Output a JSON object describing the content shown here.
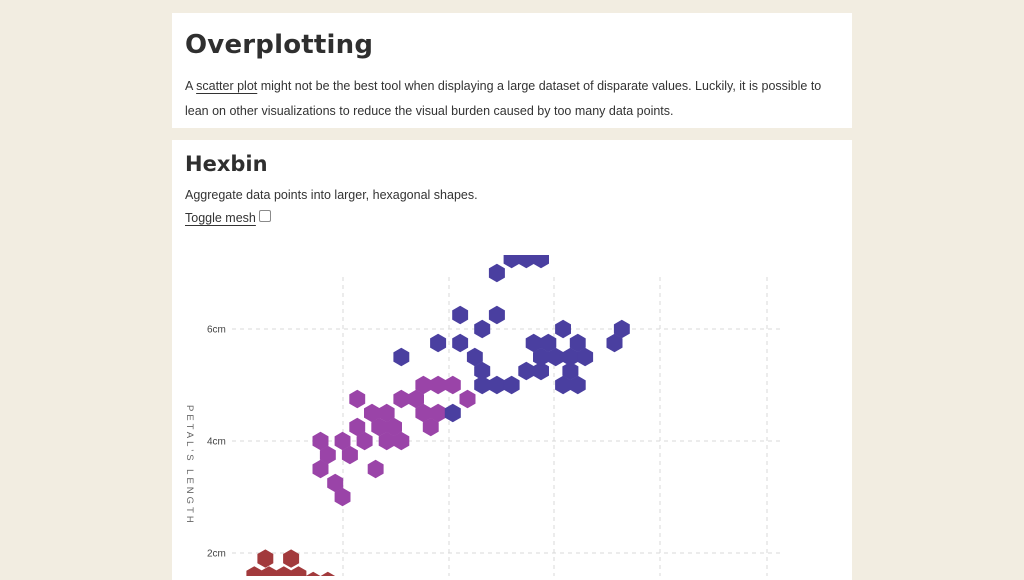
{
  "overplotting": {
    "title": "Overplotting",
    "text_before_link": "A ",
    "link_text": "scatter plot",
    "text_after_link": " might not be the best tool when displaying a large dataset of disparate values. Luckily, it is possible to lean on other visualizations to reduce the visual burden caused by too many data points."
  },
  "hexbin": {
    "title": "Hexbin",
    "description": "Aggregate data points into larger, hexagonal shapes.",
    "toggle_label": "Toggle mesh"
  },
  "colors": {
    "setosa": "#a23a3c",
    "versicolor": "#9a44a8",
    "virginica": "#4a3fa0",
    "grid": "#d8d8d8"
  },
  "chart_data": {
    "type": "hexbin",
    "ylabel": "PETAL'S LENGTH",
    "y_ticks": [
      "6cm",
      "4cm",
      "2cm"
    ],
    "y_tick_values": [
      6,
      4,
      2
    ],
    "groups": [
      {
        "color_key": "setosa",
        "points": [
          [
            4.6,
            1.6
          ],
          [
            4.8,
            1.6
          ],
          [
            5.0,
            1.6
          ],
          [
            5.2,
            1.6
          ],
          [
            4.7,
            1.4
          ],
          [
            4.9,
            1.4
          ],
          [
            5.1,
            1.4
          ],
          [
            5.3,
            1.4
          ],
          [
            4.75,
            1.9
          ],
          [
            5.1,
            1.9
          ],
          [
            5.4,
            1.5
          ],
          [
            5.6,
            1.5
          ]
        ]
      },
      {
        "color_key": "versicolor",
        "points": [
          [
            5.5,
            4.0
          ],
          [
            5.8,
            4.0
          ],
          [
            5.6,
            3.75
          ],
          [
            5.9,
            3.75
          ],
          [
            5.5,
            3.5
          ],
          [
            5.7,
            3.25
          ],
          [
            5.8,
            3.0
          ],
          [
            6.0,
            4.75
          ],
          [
            6.2,
            4.5
          ],
          [
            6.4,
            4.5
          ],
          [
            6.0,
            4.25
          ],
          [
            6.3,
            4.25
          ],
          [
            6.5,
            4.25
          ],
          [
            6.1,
            4.0
          ],
          [
            6.4,
            4.0
          ],
          [
            6.6,
            4.0
          ],
          [
            6.25,
            3.5
          ],
          [
            6.6,
            4.75
          ],
          [
            6.8,
            4.75
          ],
          [
            6.9,
            5.0
          ],
          [
            7.1,
            5.0
          ],
          [
            7.3,
            5.0
          ],
          [
            6.9,
            4.5
          ],
          [
            7.1,
            4.5
          ],
          [
            7.0,
            4.25
          ],
          [
            7.5,
            4.75
          ]
        ]
      },
      {
        "color_key": "virginica",
        "points": [
          [
            7.4,
            6.25
          ],
          [
            7.7,
            6.0
          ],
          [
            7.9,
            6.25
          ],
          [
            7.9,
            7.0
          ],
          [
            8.1,
            7.25
          ],
          [
            8.3,
            7.25
          ],
          [
            8.5,
            7.25
          ],
          [
            8.8,
            7.5
          ],
          [
            7.4,
            5.75
          ],
          [
            7.6,
            5.5
          ],
          [
            7.7,
            5.25
          ],
          [
            7.7,
            5.0
          ],
          [
            7.9,
            5.0
          ],
          [
            8.1,
            5.0
          ],
          [
            8.3,
            5.25
          ],
          [
            8.5,
            5.25
          ],
          [
            8.4,
            5.75
          ],
          [
            8.6,
            5.75
          ],
          [
            8.7,
            5.5
          ],
          [
            8.5,
            5.5
          ],
          [
            8.9,
            5.5
          ],
          [
            9.1,
            5.5
          ],
          [
            8.8,
            6.0
          ],
          [
            9.0,
            5.75
          ],
          [
            8.9,
            5.25
          ],
          [
            9.0,
            5.0
          ],
          [
            8.8,
            5.0
          ],
          [
            9.5,
            5.75
          ],
          [
            9.6,
            6.0
          ],
          [
            6.6,
            5.5
          ],
          [
            7.1,
            5.75
          ],
          [
            7.3,
            4.5
          ]
        ]
      }
    ]
  }
}
